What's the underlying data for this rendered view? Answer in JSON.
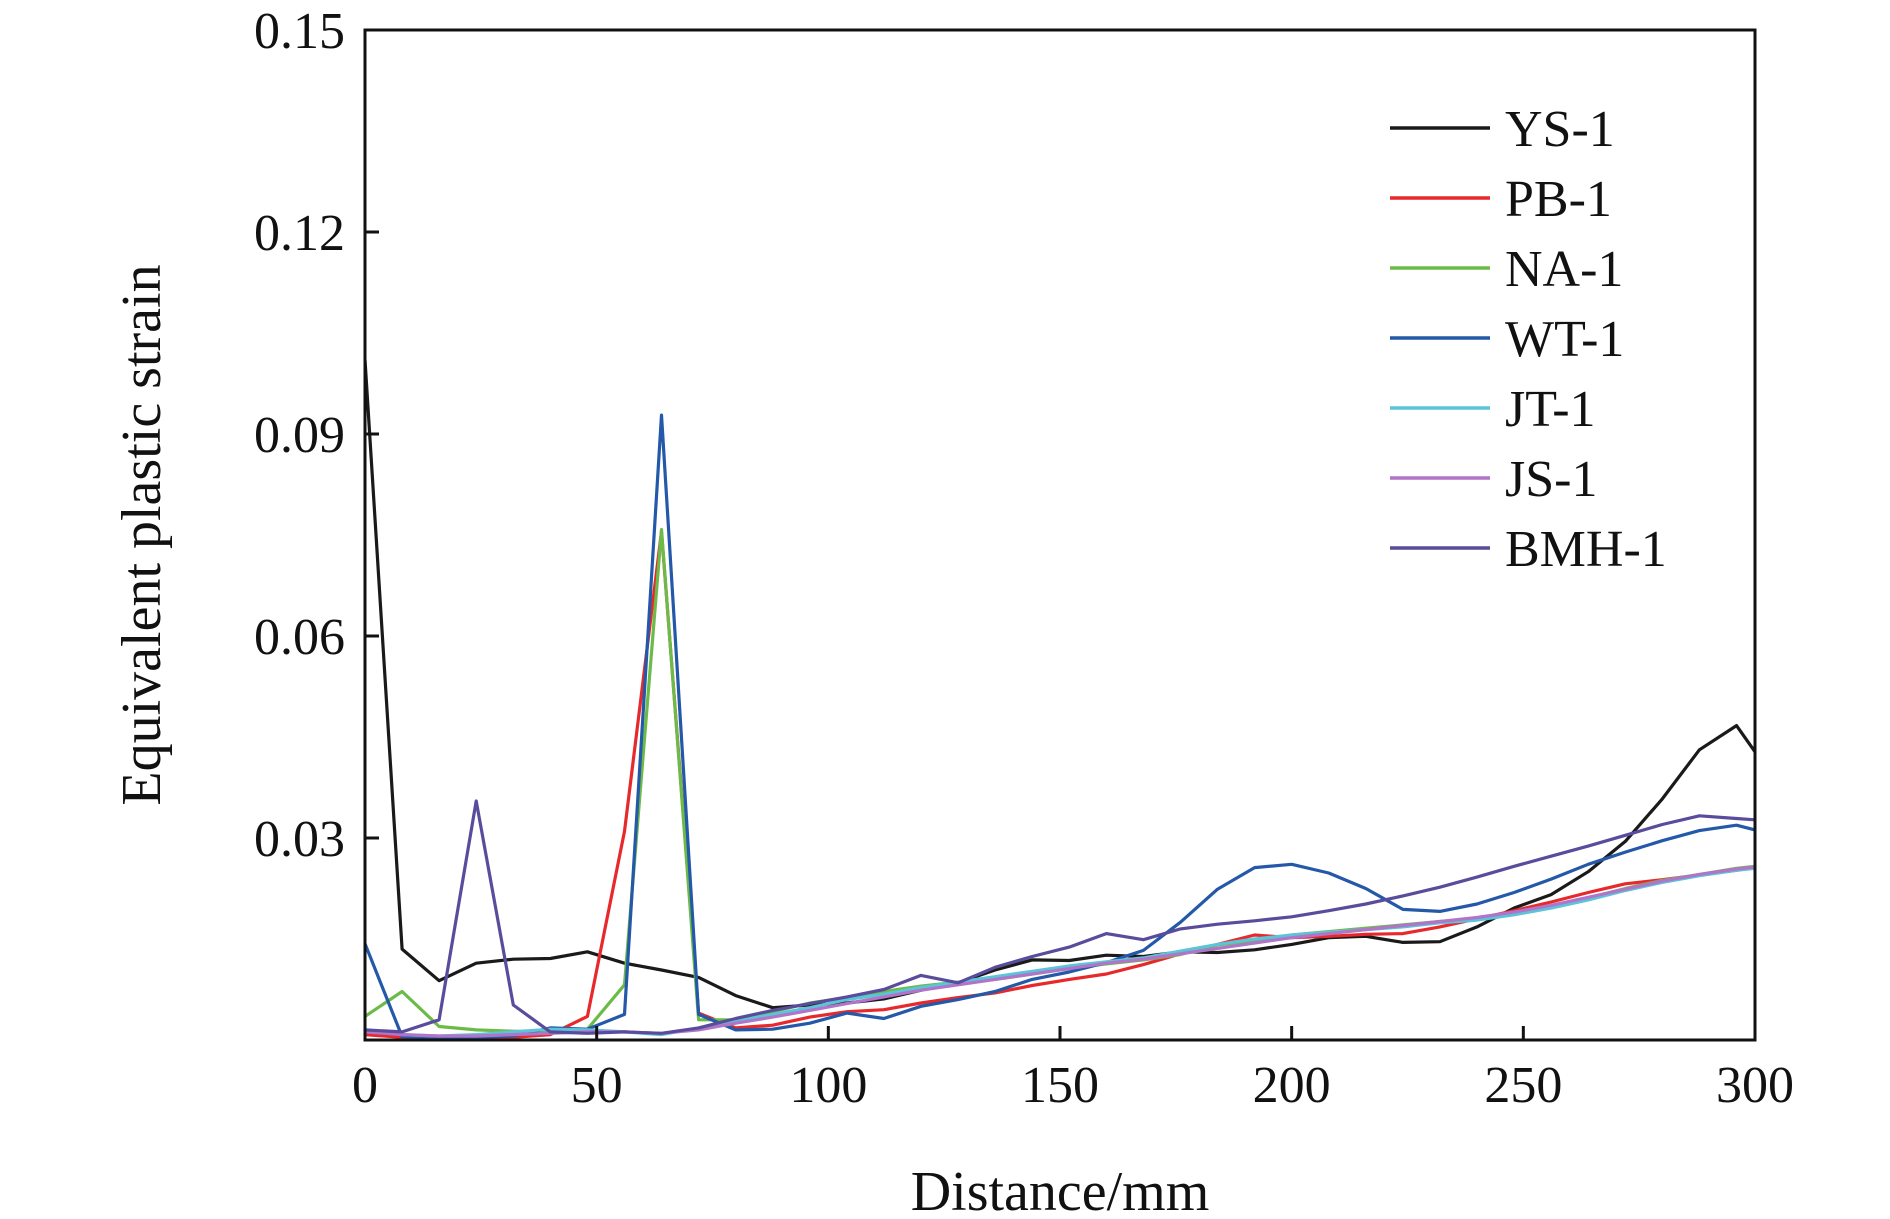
{
  "chart_data": {
    "type": "line",
    "title": "",
    "xlabel": "Distance/mm",
    "ylabel": "Equivalent plastic strain",
    "xlim": [
      0,
      300
    ],
    "ylim": [
      0,
      0.15
    ],
    "xticks": [
      "0",
      "50",
      "100",
      "150",
      "200",
      "250",
      "300"
    ],
    "yticks": [
      "0.03",
      "0.06",
      "0.09",
      "0.12",
      "0.15"
    ],
    "grid": false,
    "legend_position": "top-right",
    "series": [
      {
        "name": "YS-1",
        "color": "#1a1a1a",
        "x": [
          0,
          8,
          16,
          24,
          32,
          40,
          48,
          56,
          64,
          72,
          80,
          88,
          96,
          104,
          112,
          120,
          128,
          136,
          144,
          152,
          160,
          168,
          176,
          184,
          192,
          200,
          208,
          216,
          224,
          232,
          240,
          248,
          256,
          264,
          272,
          280,
          288,
          296,
          300
        ],
        "y": [
          0.101,
          0.0135,
          0.0088,
          0.0114,
          0.012,
          0.0121,
          0.0131,
          0.0114,
          0.0104,
          0.0093,
          0.0066,
          0.0048,
          0.0052,
          0.0055,
          0.0061,
          0.0074,
          0.0085,
          0.0104,
          0.0119,
          0.0118,
          0.0126,
          0.0124,
          0.0131,
          0.013,
          0.0134,
          0.0142,
          0.0152,
          0.0154,
          0.0145,
          0.0146,
          0.0168,
          0.0196,
          0.0216,
          0.025,
          0.0295,
          0.0358,
          0.0431,
          0.0467,
          0.0428
        ]
      },
      {
        "name": "PB-1",
        "color": "#e8292b",
        "x": [
          0,
          8,
          16,
          24,
          32,
          40,
          48,
          56,
          64,
          72,
          80,
          88,
          96,
          104,
          112,
          120,
          128,
          136,
          144,
          152,
          160,
          168,
          176,
          184,
          192,
          200,
          208,
          216,
          224,
          232,
          240,
          248,
          256,
          264,
          272,
          280,
          288,
          296,
          300
        ],
        "y": [
          0.0008,
          0.0004,
          0.0004,
          0.0004,
          0.0004,
          0.0008,
          0.0035,
          0.031,
          0.0755,
          0.004,
          0.0018,
          0.0022,
          0.0034,
          0.0042,
          0.0045,
          0.0055,
          0.0063,
          0.007,
          0.0081,
          0.009,
          0.0098,
          0.0112,
          0.0128,
          0.0142,
          0.0156,
          0.0152,
          0.0154,
          0.0157,
          0.0158,
          0.0168,
          0.018,
          0.0192,
          0.0205,
          0.0219,
          0.0232,
          0.0238,
          0.0245,
          0.0252,
          0.0256
        ]
      },
      {
        "name": "NA-1",
        "color": "#6cbb48",
        "x": [
          0,
          8,
          16,
          24,
          32,
          40,
          48,
          56,
          64,
          72,
          80,
          88,
          96,
          104,
          112,
          120,
          128,
          136,
          144,
          152,
          160,
          168,
          176,
          184,
          192,
          200,
          208,
          216,
          224,
          232,
          240,
          248,
          256,
          264,
          272,
          280,
          288,
          296,
          300
        ],
        "y": [
          0.0035,
          0.0072,
          0.002,
          0.0015,
          0.0013,
          0.0012,
          0.0016,
          0.0082,
          0.0758,
          0.003,
          0.003,
          0.0042,
          0.0055,
          0.0063,
          0.0072,
          0.008,
          0.0086,
          0.009,
          0.0098,
          0.0106,
          0.0113,
          0.0119,
          0.0127,
          0.0141,
          0.0148,
          0.0156,
          0.0161,
          0.0166,
          0.0171,
          0.0176,
          0.018,
          0.0187,
          0.0197,
          0.0211,
          0.0225,
          0.0237,
          0.0246,
          0.0255,
          0.0258
        ]
      },
      {
        "name": "WT-1",
        "color": "#2458a8",
        "x": [
          0,
          8,
          16,
          24,
          32,
          40,
          48,
          56,
          64,
          72,
          80,
          88,
          96,
          104,
          112,
          120,
          128,
          136,
          144,
          152,
          160,
          168,
          176,
          184,
          192,
          200,
          208,
          216,
          224,
          232,
          240,
          248,
          256,
          264,
          272,
          280,
          288,
          296,
          300
        ],
        "y": [
          0.0143,
          0.0005,
          0.0004,
          0.0004,
          0.0006,
          0.0018,
          0.0016,
          0.0038,
          0.0928,
          0.0038,
          0.0015,
          0.0016,
          0.0025,
          0.004,
          0.0032,
          0.005,
          0.006,
          0.0072,
          0.009,
          0.0101,
          0.0115,
          0.0133,
          0.0175,
          0.0224,
          0.0256,
          0.0261,
          0.0248,
          0.0225,
          0.0194,
          0.0191,
          0.0202,
          0.0219,
          0.0239,
          0.0261,
          0.0279,
          0.0296,
          0.0311,
          0.0319,
          0.0312
        ]
      },
      {
        "name": "JT-1",
        "color": "#5bc4d8",
        "x": [
          0,
          8,
          16,
          24,
          32,
          40,
          48,
          56,
          64,
          72,
          80,
          88,
          96,
          104,
          112,
          120,
          128,
          136,
          144,
          152,
          160,
          168,
          176,
          184,
          192,
          200,
          208,
          216,
          224,
          232,
          240,
          248,
          256,
          264,
          272,
          280,
          288,
          296,
          300
        ],
        "y": [
          0.0015,
          0.0008,
          0.0006,
          0.0008,
          0.0012,
          0.0016,
          0.0015,
          0.0012,
          0.0008,
          0.0018,
          0.0028,
          0.0038,
          0.0048,
          0.006,
          0.0068,
          0.0078,
          0.0086,
          0.0094,
          0.0102,
          0.011,
          0.0116,
          0.0122,
          0.0132,
          0.0142,
          0.015,
          0.0156,
          0.016,
          0.0164,
          0.0168,
          0.0174,
          0.0178,
          0.0186,
          0.0196,
          0.0208,
          0.0222,
          0.0234,
          0.0244,
          0.0252,
          0.0255
        ]
      },
      {
        "name": "JS-1",
        "color": "#b074c8",
        "x": [
          0,
          8,
          16,
          24,
          32,
          40,
          48,
          56,
          64,
          72,
          80,
          88,
          96,
          104,
          112,
          120,
          128,
          136,
          144,
          152,
          160,
          168,
          176,
          184,
          192,
          200,
          208,
          216,
          224,
          232,
          240,
          248,
          256,
          264,
          272,
          280,
          288,
          296,
          300
        ],
        "y": [
          0.0012,
          0.0008,
          0.0006,
          0.0006,
          0.0008,
          0.001,
          0.0012,
          0.0012,
          0.001,
          0.0015,
          0.0025,
          0.0034,
          0.0044,
          0.0054,
          0.0064,
          0.0074,
          0.0082,
          0.009,
          0.0098,
          0.0106,
          0.0114,
          0.012,
          0.0128,
          0.0136,
          0.0144,
          0.0152,
          0.0158,
          0.0164,
          0.017,
          0.0176,
          0.0182,
          0.019,
          0.02,
          0.0212,
          0.0224,
          0.0236,
          0.0246,
          0.0254,
          0.0257
        ]
      },
      {
        "name": "BMH-1",
        "color": "#5a4c9c",
        "x": [
          0,
          8,
          16,
          24,
          32,
          40,
          48,
          56,
          64,
          72,
          80,
          88,
          96,
          104,
          112,
          120,
          128,
          136,
          144,
          152,
          160,
          168,
          176,
          184,
          192,
          200,
          208,
          216,
          224,
          232,
          240,
          248,
          256,
          264,
          272,
          280,
          288,
          296,
          300
        ],
        "y": [
          0.0015,
          0.0012,
          0.003,
          0.0355,
          0.0052,
          0.0012,
          0.001,
          0.0012,
          0.001,
          0.0018,
          0.0032,
          0.0044,
          0.0054,
          0.0064,
          0.0075,
          0.0096,
          0.0085,
          0.0108,
          0.0124,
          0.0138,
          0.0158,
          0.0149,
          0.0165,
          0.0172,
          0.0177,
          0.0183,
          0.0192,
          0.0202,
          0.0214,
          0.0227,
          0.0242,
          0.0258,
          0.0273,
          0.0288,
          0.0304,
          0.032,
          0.0333,
          0.0329,
          0.0327
        ]
      }
    ]
  }
}
